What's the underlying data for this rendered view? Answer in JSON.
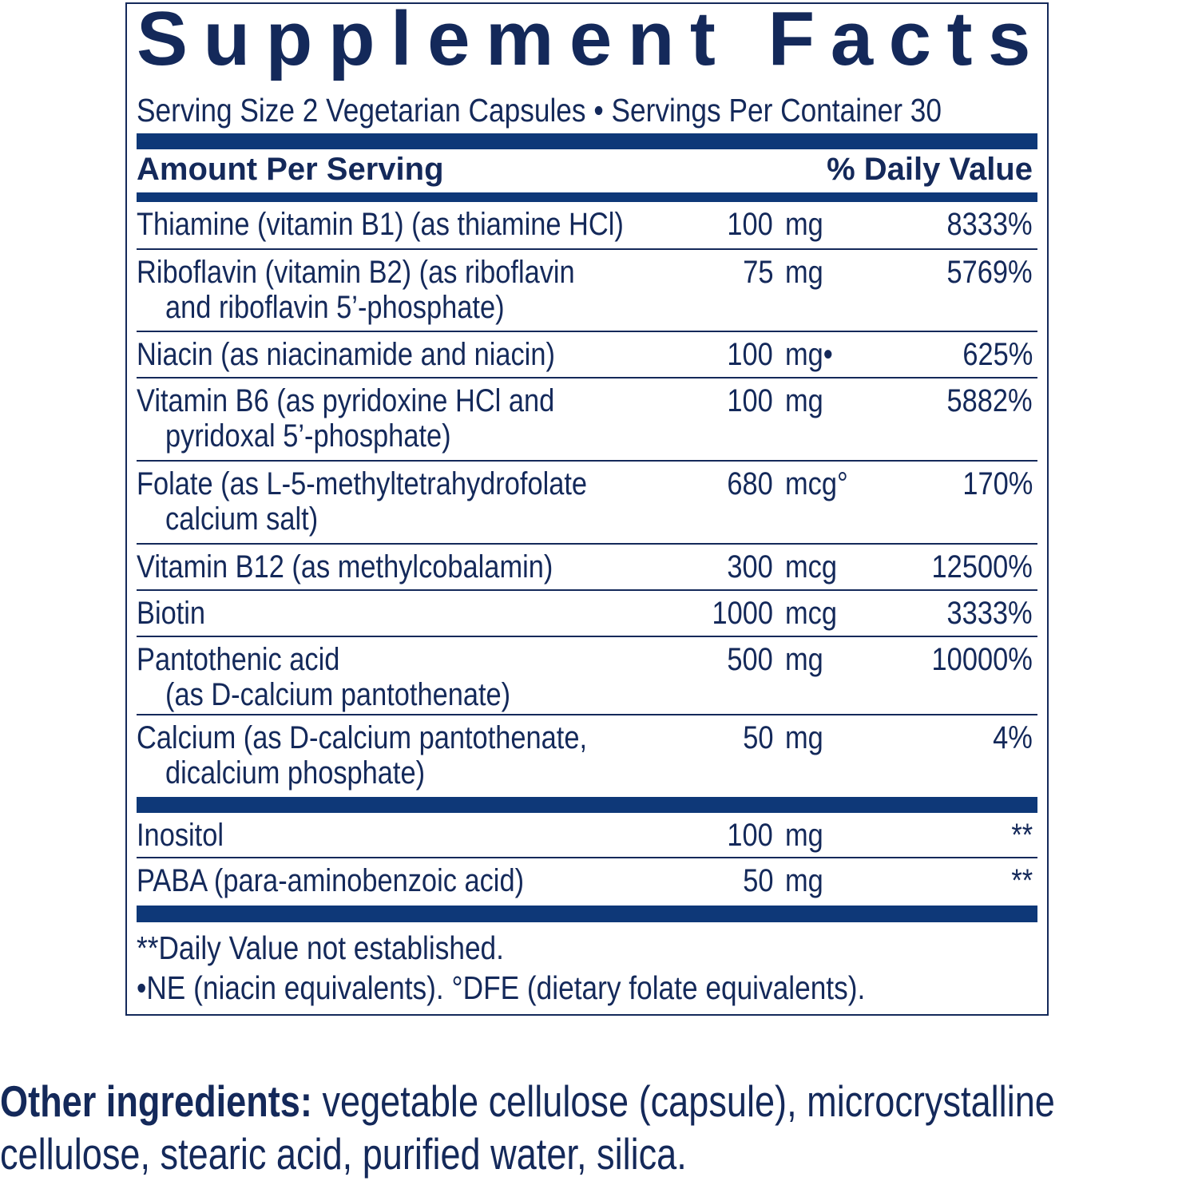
{
  "title": "Supplement Facts",
  "serving": "Serving Size 2 Vegetarian Capsules • Servings Per Container 30",
  "header": {
    "amount": "Amount Per Serving",
    "dv": "% Daily Value"
  },
  "colors": {
    "text": "#14295a",
    "bar": "#0e3878"
  },
  "rows": [
    {
      "name": [
        "Thiamine (vitamin B1) (as thiamine HCl)"
      ],
      "num": "100",
      "unit": "mg",
      "dv": "8333%"
    },
    {
      "name": [
        "Riboflavin (vitamin B2) (as riboflavin",
        "and riboflavin 5’-phosphate)"
      ],
      "num": "75",
      "unit": "mg",
      "dv": "5769%"
    },
    {
      "name": [
        "Niacin (as niacinamide and niacin)"
      ],
      "num": "100",
      "unit": "mg•",
      "dv": "625%"
    },
    {
      "name": [
        "Vitamin B6 (as pyridoxine HCl and",
        "pyridoxal 5’-phosphate)"
      ],
      "num": "100",
      "unit": "mg",
      "dv": "5882%"
    },
    {
      "name": [
        "Folate (as L-5-methyltetrahydrofolate",
        "calcium salt)"
      ],
      "num": "680",
      "unit": "mcg°",
      "dv": "170%"
    },
    {
      "name": [
        "Vitamin B12 (as methylcobalamin)"
      ],
      "num": "300",
      "unit": "mcg",
      "dv": "12500%"
    },
    {
      "name": [
        "Biotin"
      ],
      "num": "1000",
      "unit": "mcg",
      "dv": "3333%"
    },
    {
      "name": [
        "Pantothenic acid",
        "(as D-calcium pantothenate)"
      ],
      "num": "500",
      "unit": "mg",
      "dv": "10000%"
    },
    {
      "name": [
        "Calcium (as D-calcium pantothenate,",
        "dicalcium phosphate)"
      ],
      "num": "50",
      "unit": "mg",
      "dv": "4%"
    }
  ],
  "rows2": [
    {
      "name": [
        "Inositol"
      ],
      "num": "100",
      "unit": "mg",
      "dv": "**"
    },
    {
      "name": [
        "PABA (para-aminobenzoic acid)"
      ],
      "num": "50",
      "unit": "mg",
      "dv": "**"
    }
  ],
  "footnotes": [
    "**Daily Value not established.",
    "•NE (niacin equivalents). °DFE (dietary folate equivalents)."
  ],
  "other": {
    "label": "Other ingredients:",
    "text": " vegetable cellulose (capsule), microcrystalline cellulose, stearic acid, purified water, silica."
  }
}
